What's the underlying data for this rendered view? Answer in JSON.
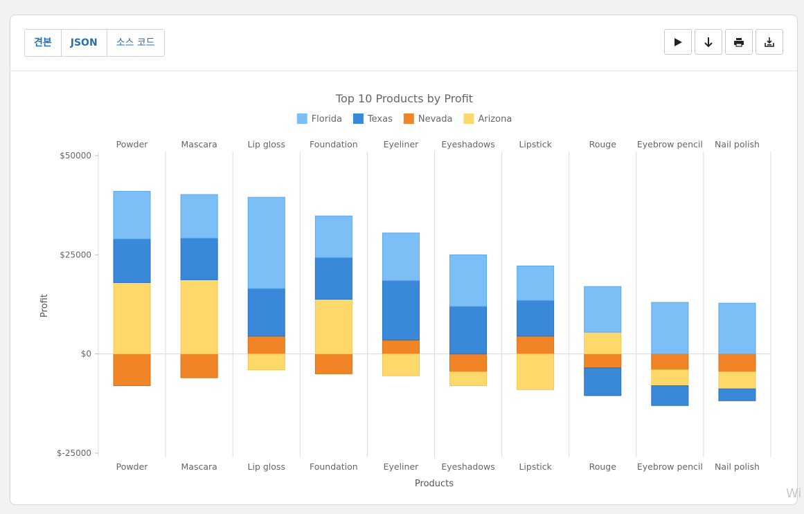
{
  "toolbar": {
    "tabs": [
      {
        "label": "견본",
        "bold": true
      },
      {
        "label": "JSON",
        "bold": true
      },
      {
        "label": "소스 코드",
        "bold": false
      }
    ],
    "actions": [
      {
        "icon": "play-icon"
      },
      {
        "icon": "arrow-down-icon"
      },
      {
        "icon": "print-icon"
      },
      {
        "icon": "download-icon"
      }
    ]
  },
  "watermark": "Wi",
  "chart_data": {
    "type": "bar",
    "stacked": true,
    "title": "Top 10 Products by Profit",
    "xlabel": "Products",
    "ylabel": "Profit",
    "ylim": [
      -25000,
      50000
    ],
    "yticks": [
      50000,
      25000,
      0,
      -25000
    ],
    "ytick_labels": [
      "$50000",
      "$25000",
      "$0",
      "$-25000"
    ],
    "legend_position": "top",
    "categories": [
      "Powder",
      "Mascara",
      "Lip gloss",
      "Foundation",
      "Eyeliner",
      "Eyeshadows",
      "Lipstick",
      "Rouge",
      "Eyebrow pencil",
      "Nail polish"
    ],
    "series": [
      {
        "name": "Florida",
        "color": "#7bbff6",
        "stroke": "#5aa8ee",
        "values": [
          12000,
          11000,
          23000,
          10500,
          12000,
          13000,
          8700,
          11500,
          13000,
          12800
        ]
      },
      {
        "name": "Texas",
        "color": "#3a88d8",
        "stroke": "#2a72c0",
        "values": [
          11000,
          10500,
          12000,
          10500,
          15000,
          12000,
          9000,
          -7000,
          -5000,
          -3000
        ]
      },
      {
        "name": "Nevada",
        "color": "#f08427",
        "stroke": "#d86e15",
        "values": [
          -8000,
          -6000,
          4500,
          -5000,
          3500,
          -4500,
          4500,
          -3500,
          -4000,
          -4500
        ]
      },
      {
        "name": "Arizona",
        "color": "#fdd86a",
        "stroke": "#f0c850",
        "values": [
          18000,
          18700,
          -4000,
          13800,
          -5500,
          -3500,
          -9000,
          5500,
          -4000,
          -4300
        ]
      }
    ]
  }
}
